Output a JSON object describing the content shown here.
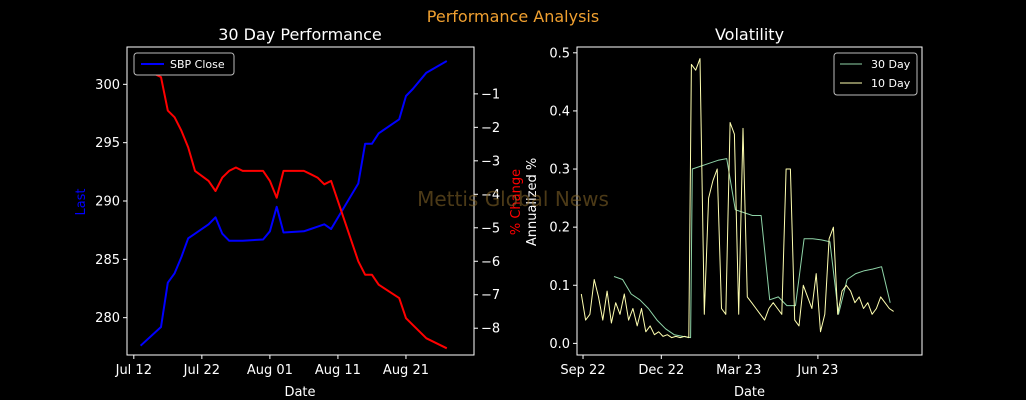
{
  "suptitle": "Performance Analysis",
  "watermark": "Mettis Global News",
  "colors": {
    "background": "#000000",
    "axes": "#ffffff",
    "title": "#f0a030",
    "close_line": "#0000ff",
    "change_line": "#ff0000",
    "vol30": "#8fd4a8",
    "vol10": "#ffffb0",
    "watermark": "#8a6a2a"
  },
  "chart_data": [
    {
      "type": "line",
      "title": "30 Day Performance",
      "xlabel": "Date",
      "ylabel": "Last",
      "y2label": "% Change",
      "xlim": [
        "2024-07-11",
        "2024-08-31"
      ],
      "x_ticks": [
        "Jul 12",
        "Jul 22",
        "Aug 01",
        "Aug 11",
        "Aug 21"
      ],
      "x_tick_dates": [
        "2024-07-12",
        "2024-07-22",
        "2024-08-01",
        "2024-08-11",
        "2024-08-21"
      ],
      "ylim": [
        276.8,
        303.2
      ],
      "y_ticks": [
        280,
        285,
        290,
        295,
        300
      ],
      "y2lim": [
        -8.8,
        0.4
      ],
      "y2_ticks": [
        -8,
        -7,
        -6,
        -5,
        -4,
        -3,
        -2,
        -1
      ],
      "legend": {
        "location": "top-left",
        "entries": [
          "SBP Close"
        ]
      },
      "x": [
        "2024-07-13",
        "2024-07-16",
        "2024-07-17",
        "2024-07-18",
        "2024-07-19",
        "2024-07-20",
        "2024-07-21",
        "2024-07-23",
        "2024-07-24",
        "2024-07-25",
        "2024-07-26",
        "2024-07-27",
        "2024-07-28",
        "2024-07-31",
        "2024-08-01",
        "2024-08-02",
        "2024-08-03",
        "2024-08-06",
        "2024-08-07",
        "2024-08-08",
        "2024-08-09",
        "2024-08-10",
        "2024-08-14",
        "2024-08-15",
        "2024-08-16",
        "2024-08-17",
        "2024-08-20",
        "2024-08-21",
        "2024-08-22",
        "2024-08-24",
        "2024-08-27"
      ],
      "series": [
        {
          "name": "SBP Close",
          "axis": "left",
          "values": [
            277.6,
            279.2,
            283.0,
            283.8,
            285.2,
            286.8,
            287.2,
            288.0,
            288.6,
            287.2,
            286.6,
            286.6,
            286.6,
            286.7,
            287.4,
            289.5,
            287.3,
            287.4,
            287.6,
            287.8,
            288.0,
            287.6,
            291.5,
            294.9,
            294.9,
            295.8,
            297.0,
            299.0,
            299.6,
            301.0,
            302.0
          ]
        },
        {
          "name": "% Change",
          "axis": "right",
          "values": [
            -0.2,
            -0.5,
            -1.5,
            -1.7,
            -2.1,
            -2.6,
            -3.3,
            -3.6,
            -3.9,
            -3.5,
            -3.3,
            -3.2,
            -3.3,
            -3.3,
            -3.6,
            -4.1,
            -3.3,
            -3.3,
            -3.4,
            -3.5,
            -3.7,
            -3.6,
            -6.0,
            -6.4,
            -6.4,
            -6.7,
            -7.1,
            -7.7,
            -7.9,
            -8.3,
            -8.6
          ]
        }
      ]
    },
    {
      "type": "line",
      "title": "Volatility",
      "xlabel": "Date",
      "ylabel": "Annualized %",
      "xlim": [
        "2022-08-25",
        "2023-09-30"
      ],
      "x_ticks": [
        "Sep 22",
        "Dec 22",
        "Mar 23",
        "Jun 23"
      ],
      "x_tick_dates": [
        "2022-09-01",
        "2022-12-01",
        "2023-03-01",
        "2023-06-01"
      ],
      "ylim": [
        -0.02,
        0.51
      ],
      "y_ticks": [
        0.0,
        0.1,
        0.2,
        0.3,
        0.4,
        0.5
      ],
      "legend": {
        "location": "top-right",
        "entries": [
          "30 Day",
          "10 Day"
        ]
      },
      "series": [
        {
          "name": "30 Day",
          "x": [
            "2022-10-07",
            "2022-10-17",
            "2022-10-27",
            "2022-11-06",
            "2022-11-16",
            "2022-11-26",
            "2022-12-06",
            "2022-12-16",
            "2022-12-26",
            "2023-01-04",
            "2023-01-06",
            "2023-01-16",
            "2023-01-26",
            "2023-02-05",
            "2023-02-15",
            "2023-02-25",
            "2023-03-07",
            "2023-03-17",
            "2023-03-27",
            "2023-04-06",
            "2023-04-16",
            "2023-04-26",
            "2023-05-06",
            "2023-05-16",
            "2023-05-26",
            "2023-06-05",
            "2023-06-15",
            "2023-06-25",
            "2023-07-05",
            "2023-07-15",
            "2023-07-25",
            "2023-08-04",
            "2023-08-14",
            "2023-08-24"
          ],
          "values": [
            0.115,
            0.11,
            0.085,
            0.075,
            0.06,
            0.04,
            0.025,
            0.015,
            0.012,
            0.01,
            0.3,
            0.305,
            0.31,
            0.315,
            0.318,
            0.23,
            0.225,
            0.22,
            0.22,
            0.075,
            0.08,
            0.065,
            0.065,
            0.18,
            0.18,
            0.178,
            0.175,
            0.05,
            0.11,
            0.12,
            0.125,
            0.128,
            0.132,
            0.07
          ]
        },
        {
          "name": "10 Day",
          "x": [
            "2022-08-30",
            "2022-09-04",
            "2022-09-09",
            "2022-09-14",
            "2022-09-19",
            "2022-09-24",
            "2022-09-29",
            "2022-10-04",
            "2022-10-09",
            "2022-10-14",
            "2022-10-19",
            "2022-10-24",
            "2022-10-29",
            "2022-11-03",
            "2022-11-08",
            "2022-11-13",
            "2022-11-18",
            "2022-11-23",
            "2022-11-28",
            "2022-12-03",
            "2022-12-08",
            "2022-12-13",
            "2022-12-18",
            "2022-12-23",
            "2022-12-28",
            "2023-01-02",
            "2023-01-05",
            "2023-01-10",
            "2023-01-15",
            "2023-01-20",
            "2023-01-25",
            "2023-01-30",
            "2023-02-04",
            "2023-02-09",
            "2023-02-14",
            "2023-02-19",
            "2023-02-24",
            "2023-03-01",
            "2023-03-06",
            "2023-03-11",
            "2023-03-16",
            "2023-03-21",
            "2023-03-26",
            "2023-03-31",
            "2023-04-05",
            "2023-04-10",
            "2023-04-15",
            "2023-04-20",
            "2023-04-25",
            "2023-04-30",
            "2023-05-05",
            "2023-05-10",
            "2023-05-15",
            "2023-05-20",
            "2023-05-25",
            "2023-05-30",
            "2023-06-04",
            "2023-06-09",
            "2023-06-14",
            "2023-06-19",
            "2023-06-24",
            "2023-06-29",
            "2023-07-04",
            "2023-07-09",
            "2023-07-14",
            "2023-07-19",
            "2023-07-24",
            "2023-07-29",
            "2023-08-03",
            "2023-08-08",
            "2023-08-13",
            "2023-08-18",
            "2023-08-23",
            "2023-08-28"
          ],
          "values": [
            0.085,
            0.04,
            0.05,
            0.11,
            0.08,
            0.04,
            0.09,
            0.035,
            0.07,
            0.05,
            0.085,
            0.04,
            0.06,
            0.03,
            0.06,
            0.02,
            0.03,
            0.015,
            0.02,
            0.012,
            0.015,
            0.01,
            0.012,
            0.01,
            0.012,
            0.01,
            0.48,
            0.47,
            0.49,
            0.05,
            0.25,
            0.28,
            0.3,
            0.06,
            0.05,
            0.38,
            0.36,
            0.05,
            0.37,
            0.08,
            0.07,
            0.06,
            0.05,
            0.04,
            0.06,
            0.07,
            0.06,
            0.05,
            0.3,
            0.3,
            0.04,
            0.03,
            0.1,
            0.08,
            0.06,
            0.12,
            0.02,
            0.05,
            0.18,
            0.2,
            0.05,
            0.09,
            0.1,
            0.09,
            0.07,
            0.08,
            0.06,
            0.07,
            0.05,
            0.06,
            0.08,
            0.07,
            0.06,
            0.055
          ]
        }
      ]
    }
  ]
}
